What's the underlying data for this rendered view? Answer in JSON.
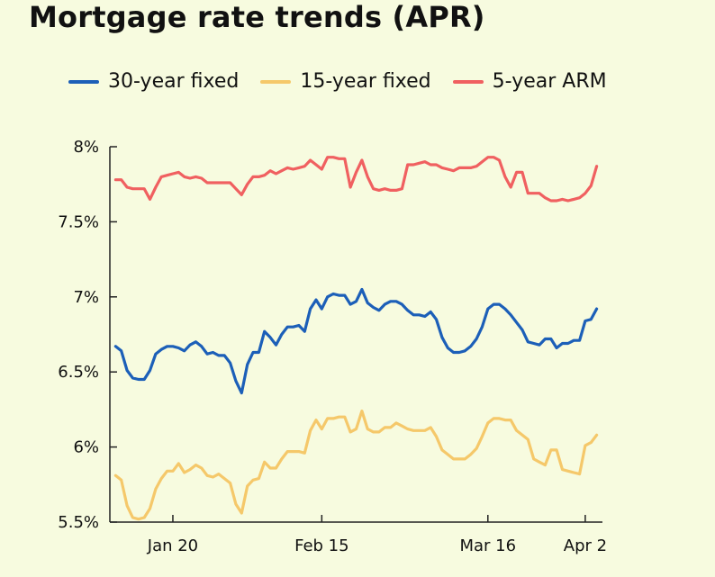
{
  "chart_data": {
    "type": "line",
    "title": "Mortgage rate trends (APR)",
    "xlabel": "",
    "ylabel": "",
    "ylim": [
      5.5,
      8.0
    ],
    "yticks": [
      5.5,
      6.0,
      6.5,
      7.0,
      7.5,
      8.0
    ],
    "ytick_labels": [
      "5.5%",
      "6%",
      "6.5%",
      "7%",
      "7.5%",
      "8%"
    ],
    "xticks": [
      {
        "x": 20,
        "label": "Jan 20"
      },
      {
        "x": 46,
        "label": "Feb 15"
      },
      {
        "x": 75,
        "label": "Mar 16"
      },
      {
        "x": 92,
        "label": "Apr 2"
      }
    ],
    "series": [
      {
        "name": "30-year fixed",
        "color": "#1c5fb8",
        "points": [
          [
            10,
            6.67
          ],
          [
            11,
            6.64
          ],
          [
            12,
            6.51
          ],
          [
            13,
            6.46
          ],
          [
            14,
            6.45
          ],
          [
            15,
            6.45
          ],
          [
            16,
            6.51
          ],
          [
            17,
            6.62
          ],
          [
            18,
            6.65
          ],
          [
            19,
            6.67
          ],
          [
            20,
            6.67
          ],
          [
            21,
            6.66
          ],
          [
            22,
            6.64
          ],
          [
            23,
            6.68
          ],
          [
            24,
            6.7
          ],
          [
            25,
            6.67
          ],
          [
            26,
            6.62
          ],
          [
            27,
            6.63
          ],
          [
            28,
            6.61
          ],
          [
            29,
            6.61
          ],
          [
            30,
            6.56
          ],
          [
            31,
            6.44
          ],
          [
            32,
            6.36
          ],
          [
            33,
            6.55
          ],
          [
            34,
            6.63
          ],
          [
            35,
            6.63
          ],
          [
            36,
            6.77
          ],
          [
            37,
            6.73
          ],
          [
            38,
            6.68
          ],
          [
            39,
            6.75
          ],
          [
            40,
            6.8
          ],
          [
            41,
            6.8
          ],
          [
            42,
            6.81
          ],
          [
            43,
            6.77
          ],
          [
            44,
            6.92
          ],
          [
            45,
            6.98
          ],
          [
            46,
            6.92
          ],
          [
            47,
            7.0
          ],
          [
            48,
            7.02
          ],
          [
            49,
            7.01
          ],
          [
            50,
            7.01
          ],
          [
            51,
            6.95
          ],
          [
            52,
            6.97
          ],
          [
            53,
            7.05
          ],
          [
            54,
            6.96
          ],
          [
            55,
            6.93
          ],
          [
            56,
            6.91
          ],
          [
            57,
            6.95
          ],
          [
            58,
            6.97
          ],
          [
            59,
            6.97
          ],
          [
            60,
            6.95
          ],
          [
            61,
            6.91
          ],
          [
            62,
            6.88
          ],
          [
            63,
            6.88
          ],
          [
            64,
            6.87
          ],
          [
            65,
            6.9
          ],
          [
            66,
            6.85
          ],
          [
            67,
            6.73
          ],
          [
            68,
            6.66
          ],
          [
            69,
            6.63
          ],
          [
            70,
            6.63
          ],
          [
            71,
            6.64
          ],
          [
            72,
            6.67
          ],
          [
            73,
            6.72
          ],
          [
            74,
            6.8
          ],
          [
            75,
            6.92
          ],
          [
            76,
            6.95
          ],
          [
            77,
            6.95
          ],
          [
            78,
            6.92
          ],
          [
            79,
            6.88
          ],
          [
            80,
            6.83
          ],
          [
            81,
            6.78
          ],
          [
            82,
            6.7
          ],
          [
            83,
            6.69
          ],
          [
            84,
            6.68
          ],
          [
            85,
            6.72
          ],
          [
            86,
            6.72
          ],
          [
            87,
            6.66
          ],
          [
            88,
            6.69
          ],
          [
            89,
            6.69
          ],
          [
            90,
            6.71
          ],
          [
            91,
            6.71
          ],
          [
            92,
            6.84
          ],
          [
            93,
            6.85
          ],
          [
            94,
            6.92
          ]
        ]
      },
      {
        "name": "15-year fixed",
        "color": "#f5c86a",
        "points": [
          [
            10,
            5.81
          ],
          [
            11,
            5.78
          ],
          [
            12,
            5.61
          ],
          [
            13,
            5.53
          ],
          [
            14,
            5.52
          ],
          [
            15,
            5.53
          ],
          [
            16,
            5.59
          ],
          [
            17,
            5.72
          ],
          [
            18,
            5.79
          ],
          [
            19,
            5.84
          ],
          [
            20,
            5.84
          ],
          [
            21,
            5.89
          ],
          [
            22,
            5.83
          ],
          [
            23,
            5.85
          ],
          [
            24,
            5.88
          ],
          [
            25,
            5.86
          ],
          [
            26,
            5.81
          ],
          [
            27,
            5.8
          ],
          [
            28,
            5.82
          ],
          [
            29,
            5.79
          ],
          [
            30,
            5.76
          ],
          [
            31,
            5.62
          ],
          [
            32,
            5.56
          ],
          [
            33,
            5.74
          ],
          [
            34,
            5.78
          ],
          [
            35,
            5.79
          ],
          [
            36,
            5.9
          ],
          [
            37,
            5.86
          ],
          [
            38,
            5.86
          ],
          [
            39,
            5.92
          ],
          [
            40,
            5.97
          ],
          [
            41,
            5.97
          ],
          [
            42,
            5.97
          ],
          [
            43,
            5.96
          ],
          [
            44,
            6.11
          ],
          [
            45,
            6.18
          ],
          [
            46,
            6.12
          ],
          [
            47,
            6.19
          ],
          [
            48,
            6.19
          ],
          [
            49,
            6.2
          ],
          [
            50,
            6.2
          ],
          [
            51,
            6.1
          ],
          [
            52,
            6.12
          ],
          [
            53,
            6.24
          ],
          [
            54,
            6.12
          ],
          [
            55,
            6.1
          ],
          [
            56,
            6.1
          ],
          [
            57,
            6.13
          ],
          [
            58,
            6.13
          ],
          [
            59,
            6.16
          ],
          [
            60,
            6.14
          ],
          [
            61,
            6.12
          ],
          [
            62,
            6.11
          ],
          [
            63,
            6.11
          ],
          [
            64,
            6.11
          ],
          [
            65,
            6.13
          ],
          [
            66,
            6.07
          ],
          [
            67,
            5.98
          ],
          [
            68,
            5.95
          ],
          [
            69,
            5.92
          ],
          [
            70,
            5.92
          ],
          [
            71,
            5.92
          ],
          [
            72,
            5.95
          ],
          [
            73,
            5.99
          ],
          [
            74,
            6.07
          ],
          [
            75,
            6.16
          ],
          [
            76,
            6.19
          ],
          [
            77,
            6.19
          ],
          [
            78,
            6.18
          ],
          [
            79,
            6.18
          ],
          [
            80,
            6.11
          ],
          [
            81,
            6.08
          ],
          [
            82,
            6.05
          ],
          [
            83,
            5.92
          ],
          [
            84,
            5.9
          ],
          [
            85,
            5.88
          ],
          [
            86,
            5.98
          ],
          [
            87,
            5.98
          ],
          [
            88,
            5.85
          ],
          [
            89,
            5.84
          ],
          [
            90,
            5.83
          ],
          [
            91,
            5.82
          ],
          [
            92,
            6.01
          ],
          [
            93,
            6.03
          ],
          [
            94,
            6.08
          ]
        ]
      },
      {
        "name": "5-year ARM",
        "color": "#f06060",
        "points": [
          [
            10,
            7.78
          ],
          [
            11,
            7.78
          ],
          [
            12,
            7.73
          ],
          [
            13,
            7.72
          ],
          [
            14,
            7.72
          ],
          [
            15,
            7.72
          ],
          [
            16,
            7.65
          ],
          [
            17,
            7.73
          ],
          [
            18,
            7.8
          ],
          [
            19,
            7.81
          ],
          [
            20,
            7.82
          ],
          [
            21,
            7.83
          ],
          [
            22,
            7.8
          ],
          [
            23,
            7.79
          ],
          [
            24,
            7.8
          ],
          [
            25,
            7.79
          ],
          [
            26,
            7.76
          ],
          [
            27,
            7.76
          ],
          [
            28,
            7.76
          ],
          [
            29,
            7.76
          ],
          [
            30,
            7.76
          ],
          [
            31,
            7.72
          ],
          [
            32,
            7.68
          ],
          [
            33,
            7.75
          ],
          [
            34,
            7.8
          ],
          [
            35,
            7.8
          ],
          [
            36,
            7.81
          ],
          [
            37,
            7.84
          ],
          [
            38,
            7.82
          ],
          [
            39,
            7.84
          ],
          [
            40,
            7.86
          ],
          [
            41,
            7.85
          ],
          [
            42,
            7.86
          ],
          [
            43,
            7.87
          ],
          [
            44,
            7.91
          ],
          [
            45,
            7.88
          ],
          [
            46,
            7.85
          ],
          [
            47,
            7.93
          ],
          [
            48,
            7.93
          ],
          [
            49,
            7.92
          ],
          [
            50,
            7.92
          ],
          [
            51,
            7.73
          ],
          [
            52,
            7.83
          ],
          [
            53,
            7.91
          ],
          [
            54,
            7.8
          ],
          [
            55,
            7.72
          ],
          [
            56,
            7.71
          ],
          [
            57,
            7.72
          ],
          [
            58,
            7.71
          ],
          [
            59,
            7.71
          ],
          [
            60,
            7.72
          ],
          [
            61,
            7.88
          ],
          [
            62,
            7.88
          ],
          [
            63,
            7.89
          ],
          [
            64,
            7.9
          ],
          [
            65,
            7.88
          ],
          [
            66,
            7.88
          ],
          [
            67,
            7.86
          ],
          [
            68,
            7.85
          ],
          [
            69,
            7.84
          ],
          [
            70,
            7.86
          ],
          [
            71,
            7.86
          ],
          [
            72,
            7.86
          ],
          [
            73,
            7.87
          ],
          [
            74,
            7.9
          ],
          [
            75,
            7.93
          ],
          [
            76,
            7.93
          ],
          [
            77,
            7.91
          ],
          [
            78,
            7.8
          ],
          [
            79,
            7.73
          ],
          [
            80,
            7.83
          ],
          [
            81,
            7.83
          ],
          [
            82,
            7.69
          ],
          [
            83,
            7.69
          ],
          [
            84,
            7.69
          ],
          [
            85,
            7.66
          ],
          [
            86,
            7.64
          ],
          [
            87,
            7.64
          ],
          [
            88,
            7.65
          ],
          [
            89,
            7.64
          ],
          [
            90,
            7.65
          ],
          [
            91,
            7.66
          ],
          [
            92,
            7.69
          ],
          [
            93,
            7.74
          ],
          [
            94,
            7.87
          ]
        ]
      }
    ]
  }
}
